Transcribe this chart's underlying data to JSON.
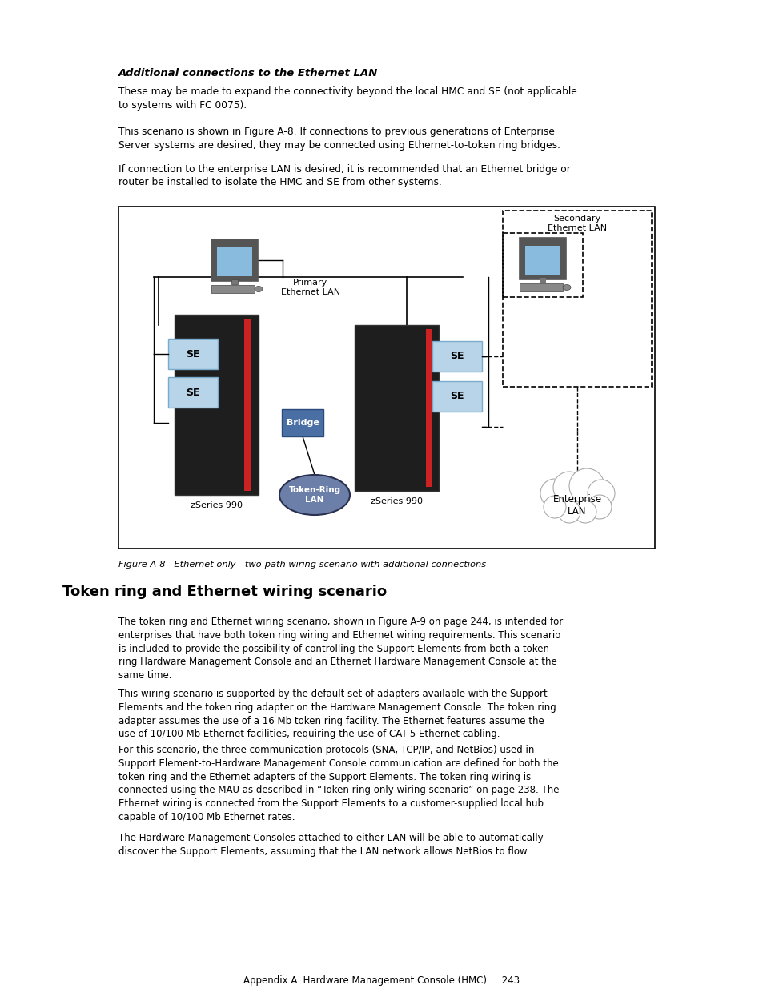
{
  "bg_color": "#ffffff",
  "subtitle": "Additional connections to the Ethernet LAN",
  "para1": "These may be made to expand the connectivity beyond the local HMC and SE (not applicable\nto systems with FC 0075).",
  "para2": "This scenario is shown in Figure A-8. If connections to previous generations of Enterprise\nServer systems are desired, they may be connected using Ethernet-to-token ring bridges.",
  "para3": "If connection to the enterprise LAN is desired, it is recommended that an Ethernet bridge or\nrouter be installed to isolate the HMC and SE from other systems.",
  "fig_caption": "Figure A-8   Ethernet only - two-path wiring scenario with additional connections",
  "section_title": "Token ring and Ethernet wiring scenario",
  "body1": "The token ring and Ethernet wiring scenario, shown in Figure A-9 on page 244, is intended for\nenterprises that have both token ring wiring and Ethernet wiring requirements. This scenario\nis included to provide the possibility of controlling the Support Elements from both a token\nring Hardware Management Console and an Ethernet Hardware Management Console at the\nsame time.",
  "body2": "This wiring scenario is supported by the default set of adapters available with the Support\nElements and the token ring adapter on the Hardware Management Console. The token ring\nadapter assumes the use of a 16 Mb token ring facility. The Ethernet features assume the\nuse of 10/100 Mb Ethernet facilities, requiring the use of CAT-5 Ethernet cabling.",
  "body3": "For this scenario, the three communication protocols (SNA, TCP/IP, and NetBios) used in\nSupport Element-to-Hardware Management Console communication are defined for both the\ntoken ring and the Ethernet adapters of the Support Elements. The token ring wiring is\nconnected using the MAU as described in “Token ring only wiring scenario” on page 238. The\nEthernet wiring is connected from the Support Elements to a customer-supplied local hub\ncapable of 10/100 Mb Ethernet rates.",
  "body4": "The Hardware Management Consoles attached to either LAN will be able to automatically\ndiscover the Support Elements, assuming that the LAN network allows NetBios to flow",
  "footer": "Appendix A. Hardware Management Console (HMC)     243",
  "primary_lan_label": "Primary\nEthernet LAN",
  "secondary_lan_label": "Secondary\nEthernet LAN",
  "bridge_label": "Bridge",
  "token_ring_label": "Token-Ring\nLAN",
  "enterprise_label": "Enterprise\nLAN",
  "zseries_label": "zSeries 990",
  "se_color": "#b8d4e8",
  "bridge_color": "#4a6fa5",
  "token_ring_color_top": "#6b7fa8",
  "token_ring_color_bot": "#4a5a78",
  "se_text_color": "#000000",
  "bridge_text_color": "#ffffff",
  "token_ring_text_color": "#ffffff",
  "server_color": "#1e1e1e",
  "server_edge": "#333333",
  "server_stripe": "#cc2222"
}
